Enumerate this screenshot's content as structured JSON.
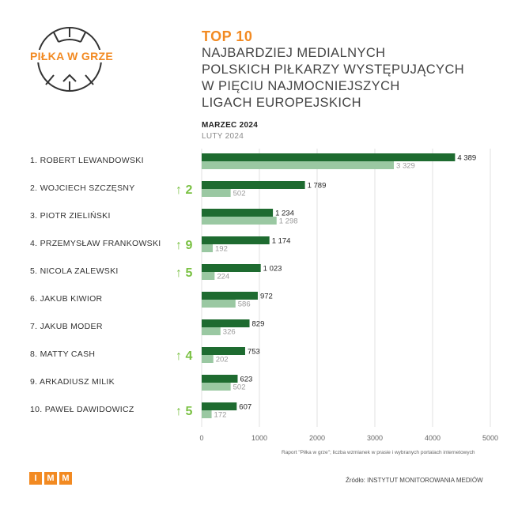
{
  "logo": {
    "text": "PIŁKA W GRZE"
  },
  "header": {
    "top": "TOP 10",
    "title_lines": [
      "NAJBARDZIEJ MEDIALNYCH",
      "POLSKICH PIŁKARZY WYSTĘPUJĄCYCH",
      "W PIĘCIU NAJMOCNIEJSZYCH",
      "LIGACH EUROPEJSKICH"
    ]
  },
  "footer": {
    "note": "Raport \"Piłka w grze\"; liczba wzmianek w prasie i wybranych portalach internetowych",
    "source": "Źródło: INSTYTUT MONITOROWANIA MEDIÓW",
    "brand": [
      "I",
      "M",
      "M"
    ]
  },
  "colors": {
    "current": "#1e6b30",
    "previous": "#9ac8a2",
    "accent": "#f28a22",
    "up": "#7ac143"
  },
  "chart_data": {
    "type": "bar",
    "orientation": "horizontal",
    "categories": [
      "1.  ROBERT LEWANDOWSKI",
      "2.  WOJCIECH SZCZĘSNY",
      "3.  PIOTR ZIELIŃSKI",
      "4.  PRZEMYSŁAW FRANKOWSKI",
      "5.  NICOLA ZALEWSKI",
      "6.  JAKUB KIWIOR",
      "7.  JAKUB MODER",
      "8.  MATTY CASH",
      "9.  ARKADIUSZ MILIK",
      "10. PAWEŁ DAWIDOWICZ"
    ],
    "series": [
      {
        "name": "MARZEC 2024",
        "values": [
          4389,
          1789,
          1234,
          1174,
          1023,
          972,
          829,
          753,
          623,
          607
        ],
        "labels": [
          "4 389",
          "1 789",
          "1 234",
          "1 174",
          "1 023",
          "972",
          "829",
          "753",
          "623",
          "607"
        ]
      },
      {
        "name": "LUTY 2024",
        "values": [
          3329,
          502,
          1298,
          192,
          224,
          586,
          326,
          202,
          502,
          172
        ],
        "labels": [
          "3 329",
          "502",
          "1 298",
          "192",
          "224",
          "586",
          "326",
          "202",
          "502",
          "172"
        ]
      }
    ],
    "rank_change": [
      "",
      "↑ 2",
      "",
      "↑ 9",
      "↑ 5",
      "",
      "",
      "↑ 4",
      "",
      "↑ 5"
    ],
    "xlim": [
      0,
      5000
    ],
    "xticks": [
      0,
      1000,
      2000,
      3000,
      4000,
      5000
    ],
    "xtick_labels": [
      "0",
      "1000",
      "2000",
      "3000",
      "4000",
      "5000"
    ],
    "grid": true
  }
}
